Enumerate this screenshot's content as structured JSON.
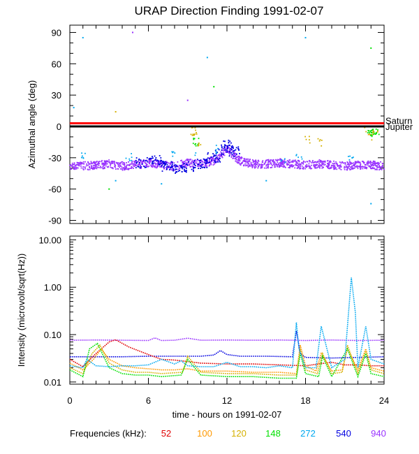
{
  "title": "URAP Direction Finding  1991-02-07",
  "colors": {
    "saturn": "#ff0000",
    "jupiter": "#000000",
    "f52": "#e00000",
    "f100": "#ff9900",
    "f120": "#d4b000",
    "f148": "#00e000",
    "f272": "#00a8f0",
    "f540": "#0000e0",
    "f940": "#9933ff"
  },
  "legend": {
    "prefix": "Frequencies (kHz):",
    "items": [
      {
        "label": "52",
        "color": "#e00000"
      },
      {
        "label": "100",
        "color": "#ff9900"
      },
      {
        "label": "120",
        "color": "#d4b000"
      },
      {
        "label": "148",
        "color": "#00e000"
      },
      {
        "label": "272",
        "color": "#00a8f0"
      },
      {
        "label": "540",
        "color": "#0000e0"
      },
      {
        "label": "940",
        "color": "#9933ff"
      }
    ]
  },
  "chart_data": [
    {
      "type": "scatter",
      "title": "URAP Direction Finding  1991-02-07",
      "ylabel": "Azimuthal angle (deg)",
      "xlabel": "",
      "xlim": [
        0,
        24
      ],
      "ylim": [
        -93,
        97
      ],
      "yticks": [
        90,
        60,
        30,
        0,
        -30,
        -60,
        -90
      ],
      "reference_lines": [
        {
          "name": "Saturn",
          "y": 3,
          "color": "#ff0000"
        },
        {
          "name": "Jupiter",
          "y": 0,
          "color": "#000000"
        }
      ],
      "series": [
        {
          "name": "940",
          "color": "#9933ff",
          "x": [
            0,
            1,
            2,
            3,
            4,
            5,
            6,
            7,
            8,
            9,
            10,
            11,
            12,
            13,
            14,
            15,
            16,
            17,
            18,
            19,
            20,
            21,
            22,
            23,
            24
          ],
          "values": [
            -37,
            -38,
            -37,
            -36,
            -38,
            -37,
            -35,
            -37,
            -38,
            -35,
            -36,
            -33,
            -22,
            -33,
            -36,
            -36,
            -35,
            -36,
            -37,
            -36,
            -37,
            -38,
            -37,
            -37,
            -38
          ]
        },
        {
          "name": "540",
          "color": "#0000e0",
          "x": [
            5.5,
            6.5,
            7.5,
            8.5,
            9,
            10,
            11,
            11.5,
            12,
            12.5
          ],
          "values": [
            -35,
            -33,
            -38,
            -40,
            -38,
            -36,
            -30,
            -24,
            -18,
            -24
          ]
        },
        {
          "name": "272",
          "color": "#00a8f0",
          "x": [
            1,
            4.5,
            7.8,
            9.5,
            11.2,
            16.3,
            17.5,
            21.5
          ],
          "values": [
            -28,
            -29,
            -28,
            -27,
            -22,
            -31,
            -30,
            -30
          ]
        },
        {
          "name": "148",
          "color": "#00e000",
          "x": [
            9.6,
            23,
            23.2,
            23.4
          ],
          "values": [
            -15,
            -5,
            -8,
            -4
          ]
        },
        {
          "name": "120",
          "color": "#d4b000",
          "x": [
            9.5,
            10,
            18.2,
            19,
            22.6,
            22.9,
            23.3
          ],
          "values": [
            -5,
            -16,
            -12,
            -15,
            -5,
            -9,
            -7
          ]
        }
      ]
    },
    {
      "type": "line",
      "title": "",
      "ylabel": "Intensity (microvolt/sqrt(Hz))",
      "xlabel": "time - hours on 1991-02-07",
      "xlim": [
        0,
        24
      ],
      "yscale": "log",
      "ylim": [
        0.009,
        12
      ],
      "yticks": [
        "10.00",
        "1.00",
        "0.10",
        "0.01"
      ],
      "xticks": [
        "0",
        "6",
        "12",
        "18",
        "24"
      ],
      "series": [
        {
          "name": "940",
          "color": "#9933ff",
          "x": [
            0,
            2,
            4,
            6,
            6.5,
            7,
            8,
            9,
            10,
            12,
            14,
            16,
            17,
            18,
            19,
            20,
            22,
            24
          ],
          "values": [
            0.076,
            0.077,
            0.076,
            0.075,
            0.085,
            0.075,
            0.076,
            0.084,
            0.076,
            0.077,
            0.076,
            0.077,
            0.076,
            0.075,
            0.076,
            0.077,
            0.075,
            0.076
          ]
        },
        {
          "name": "540",
          "color": "#0000e0",
          "x": [
            0,
            2,
            4,
            6,
            8,
            10,
            11,
            11.5,
            12,
            13,
            15,
            17,
            17.3,
            17.6,
            18,
            20,
            22,
            24
          ],
          "values": [
            0.034,
            0.034,
            0.034,
            0.035,
            0.035,
            0.035,
            0.037,
            0.046,
            0.038,
            0.035,
            0.035,
            0.034,
            0.12,
            0.04,
            0.033,
            0.032,
            0.033,
            0.034
          ]
        },
        {
          "name": "52",
          "color": "#e00000",
          "x": [
            0,
            1,
            2,
            3,
            3.5,
            4.5,
            6,
            7,
            8,
            9,
            10,
            12,
            14,
            16,
            18,
            19,
            20,
            21,
            22,
            23,
            24
          ],
          "values": [
            0.03,
            0.021,
            0.04,
            0.07,
            0.078,
            0.055,
            0.038,
            0.03,
            0.029,
            0.027,
            0.025,
            0.024,
            0.024,
            0.023,
            0.022,
            0.024,
            0.026,
            0.023,
            0.023,
            0.022,
            0.022
          ]
        },
        {
          "name": "100",
          "color": "#ff9900",
          "x": [
            0,
            1,
            1.8,
            2.4,
            3,
            4,
            5,
            6,
            7,
            8,
            9,
            10,
            12,
            14,
            16,
            17.3,
            17.6,
            18,
            18.8,
            19.2,
            20,
            20.8,
            21.2,
            22,
            22.6,
            23,
            24
          ],
          "values": [
            0.025,
            0.018,
            0.03,
            0.05,
            0.03,
            0.022,
            0.02,
            0.019,
            0.018,
            0.018,
            0.019,
            0.017,
            0.017,
            0.016,
            0.016,
            0.015,
            0.06,
            0.022,
            0.017,
            0.04,
            0.017,
            0.018,
            0.05,
            0.018,
            0.05,
            0.02,
            0.017
          ]
        },
        {
          "name": "120",
          "color": "#d4b000",
          "x": [
            0,
            1,
            1.7,
            2.3,
            3,
            4,
            5,
            6,
            7,
            8.6,
            9,
            10,
            12,
            14,
            16,
            17.3,
            17.6,
            18,
            18.9,
            19.3,
            20,
            20.8,
            21.2,
            22,
            22.6,
            23,
            24
          ],
          "values": [
            0.02,
            0.015,
            0.04,
            0.06,
            0.025,
            0.018,
            0.016,
            0.016,
            0.015,
            0.016,
            0.035,
            0.016,
            0.015,
            0.015,
            0.014,
            0.014,
            0.05,
            0.018,
            0.015,
            0.04,
            0.015,
            0.016,
            0.06,
            0.015,
            0.045,
            0.018,
            0.015
          ]
        },
        {
          "name": "148",
          "color": "#00e000",
          "x": [
            0,
            1,
            1.5,
            2.1,
            3,
            4,
            5,
            6,
            7,
            8.5,
            9,
            10,
            12,
            14,
            16,
            17.3,
            17.6,
            18,
            19,
            19.3,
            20,
            21.2,
            22,
            22.6,
            23,
            24
          ],
          "values": [
            0.018,
            0.013,
            0.05,
            0.065,
            0.02,
            0.015,
            0.014,
            0.014,
            0.013,
            0.014,
            0.03,
            0.014,
            0.013,
            0.013,
            0.012,
            0.012,
            0.04,
            0.015,
            0.013,
            0.035,
            0.013,
            0.05,
            0.013,
            0.04,
            0.015,
            0.013
          ]
        },
        {
          "name": "272",
          "color": "#00a8f0",
          "x": [
            0,
            1,
            1.3,
            2,
            3,
            4,
            5,
            6,
            7,
            8,
            8.5,
            9,
            10,
            11,
            12,
            13,
            14,
            15,
            16,
            17,
            17.3,
            17.5,
            18,
            18.8,
            19.2,
            20,
            21,
            21.5,
            21.8,
            22,
            22.6,
            23,
            24
          ],
          "values": [
            0.022,
            0.02,
            0.03,
            0.022,
            0.021,
            0.022,
            0.022,
            0.023,
            0.03,
            0.024,
            0.028,
            0.022,
            0.021,
            0.021,
            0.026,
            0.021,
            0.021,
            0.02,
            0.022,
            0.02,
            0.18,
            0.05,
            0.02,
            0.02,
            0.15,
            0.02,
            0.03,
            1.6,
            0.3,
            0.02,
            0.15,
            0.03,
            0.024
          ]
        }
      ]
    }
  ]
}
